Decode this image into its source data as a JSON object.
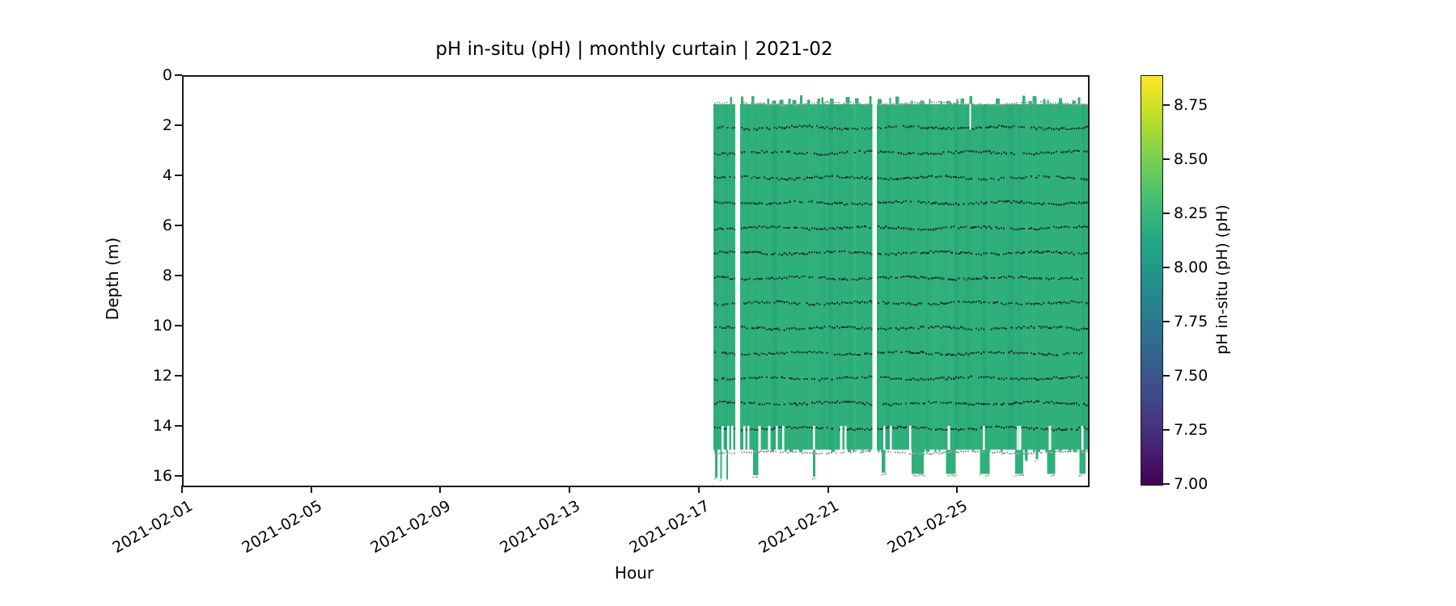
{
  "title": "pH in-situ (pH) | monthly curtain | 2021-02",
  "axes": {
    "xlabel": "Hour",
    "ylabel": "Depth (m)",
    "x_domain_days": 28,
    "y_domain_max": 16.32,
    "x_ticks": [
      {
        "day": 0,
        "label": "2021-02-01"
      },
      {
        "day": 4,
        "label": "2021-02-05"
      },
      {
        "day": 8,
        "label": "2021-02-09"
      },
      {
        "day": 12,
        "label": "2021-02-13"
      },
      {
        "day": 16,
        "label": "2021-02-17"
      },
      {
        "day": 20,
        "label": "2021-02-21"
      },
      {
        "day": 24,
        "label": "2021-02-25"
      }
    ],
    "y_ticks": [
      0,
      2,
      4,
      6,
      8,
      10,
      12,
      14,
      16
    ]
  },
  "colorbar": {
    "label": "pH in-situ (pH) (pH)",
    "vmin": 7.0,
    "vmax": 8.89,
    "colormap": "viridis",
    "ticks": [
      {
        "value": 8.75,
        "label": "8.75"
      },
      {
        "value": 8.5,
        "label": "8.50"
      },
      {
        "value": 8.25,
        "label": "8.25"
      },
      {
        "value": 8.0,
        "label": "8.00"
      },
      {
        "value": 7.75,
        "label": "7.75"
      },
      {
        "value": 7.5,
        "label": "7.50"
      },
      {
        "value": 7.25,
        "label": "7.25"
      },
      {
        "value": 7.0,
        "label": "7.00"
      }
    ],
    "gradient_stops": [
      [
        0.0,
        "#440154"
      ],
      [
        0.1,
        "#482475"
      ],
      [
        0.2,
        "#414487"
      ],
      [
        0.3,
        "#355f8d"
      ],
      [
        0.4,
        "#2a788e"
      ],
      [
        0.5,
        "#21918c"
      ],
      [
        0.6,
        "#22a884"
      ],
      [
        0.7,
        "#44bf70"
      ],
      [
        0.8,
        "#7ad151"
      ],
      [
        0.9,
        "#bddf26"
      ],
      [
        1.0,
        "#fde725"
      ]
    ]
  },
  "chart_data": {
    "type": "heatmap",
    "x_start_date": "2021-02-01",
    "x_end_date": "2021-03-01",
    "y_min_depth_m": 0,
    "y_max_depth_m": 16.32,
    "value_field": "pH in-situ (pH)",
    "approx_uniform_value_ph": 8.17,
    "coverage_segments_days": [
      [
        16.4,
        17.08
      ],
      [
        17.23,
        21.33
      ],
      [
        21.46,
        28.0
      ]
    ],
    "full_gap_days": [
      [
        17.08,
        17.23
      ],
      [
        21.33,
        21.46
      ]
    ],
    "partial_gaps": [
      {
        "days": [
          24.33,
          24.38
        ],
        "depth_from": 1.1,
        "depth_to": 2.12
      }
    ],
    "top_edge_depth": 1.1,
    "bottom_edge_depth": 14.88,
    "sensor_line_depths": [
      2,
      3,
      4,
      5,
      6,
      7,
      8,
      9,
      10,
      11,
      12,
      13,
      14
    ],
    "boundary_line_depths": [
      1.04,
      14.97
    ],
    "band_gaps": {
      "depth_from": 13.93,
      "depth_to": 14.9,
      "days": [
        16.65,
        16.83,
        16.95,
        17.33,
        17.45,
        17.8,
        18.1,
        18.33,
        18.53,
        19.48,
        20.33,
        20.46,
        21.66,
        21.86,
        22.46,
        23.66,
        24.74,
        25.79,
        25.87,
        26.79,
        27.8
      ]
    },
    "bottom_columns": [
      {
        "days": [
          16.45,
          16.53
        ],
        "depth_to": 16.02
      },
      {
        "days": [
          16.62,
          16.67
        ],
        "depth_to": 16.05
      },
      {
        "days": [
          16.8,
          16.85
        ],
        "depth_to": 16.08
      },
      {
        "days": [
          17.63,
          17.8
        ],
        "depth_to": 15.9
      },
      {
        "days": [
          19.48,
          19.56
        ],
        "depth_to": 15.97
      },
      {
        "days": [
          21.61,
          21.73
        ],
        "depth_to": 15.8
      },
      {
        "days": [
          22.54,
          22.91
        ],
        "depth_to": 15.85
      },
      {
        "days": [
          23.61,
          23.91
        ],
        "depth_to": 15.85
      },
      {
        "days": [
          24.66,
          24.96
        ],
        "depth_to": 15.85
      },
      {
        "days": [
          25.74,
          25.99
        ],
        "depth_to": 15.85
      },
      {
        "days": [
          26.05,
          26.13
        ],
        "depth_to": 15.3
      },
      {
        "days": [
          26.38,
          26.46
        ],
        "depth_to": 15.25
      },
      {
        "days": [
          26.74,
          26.99
        ],
        "depth_to": 15.85
      },
      {
        "days": [
          27.74,
          27.92
        ],
        "depth_to": 15.85
      }
    ],
    "colors": {
      "fill": "#2fb07b",
      "streaks": [
        "#0e8070",
        "#1a9379",
        "#43c78b"
      ],
      "sensor_dots": "#1f382e",
      "boundary_dots": "#a5a09a",
      "gap_white": "#ffffff"
    },
    "seed": 11
  }
}
